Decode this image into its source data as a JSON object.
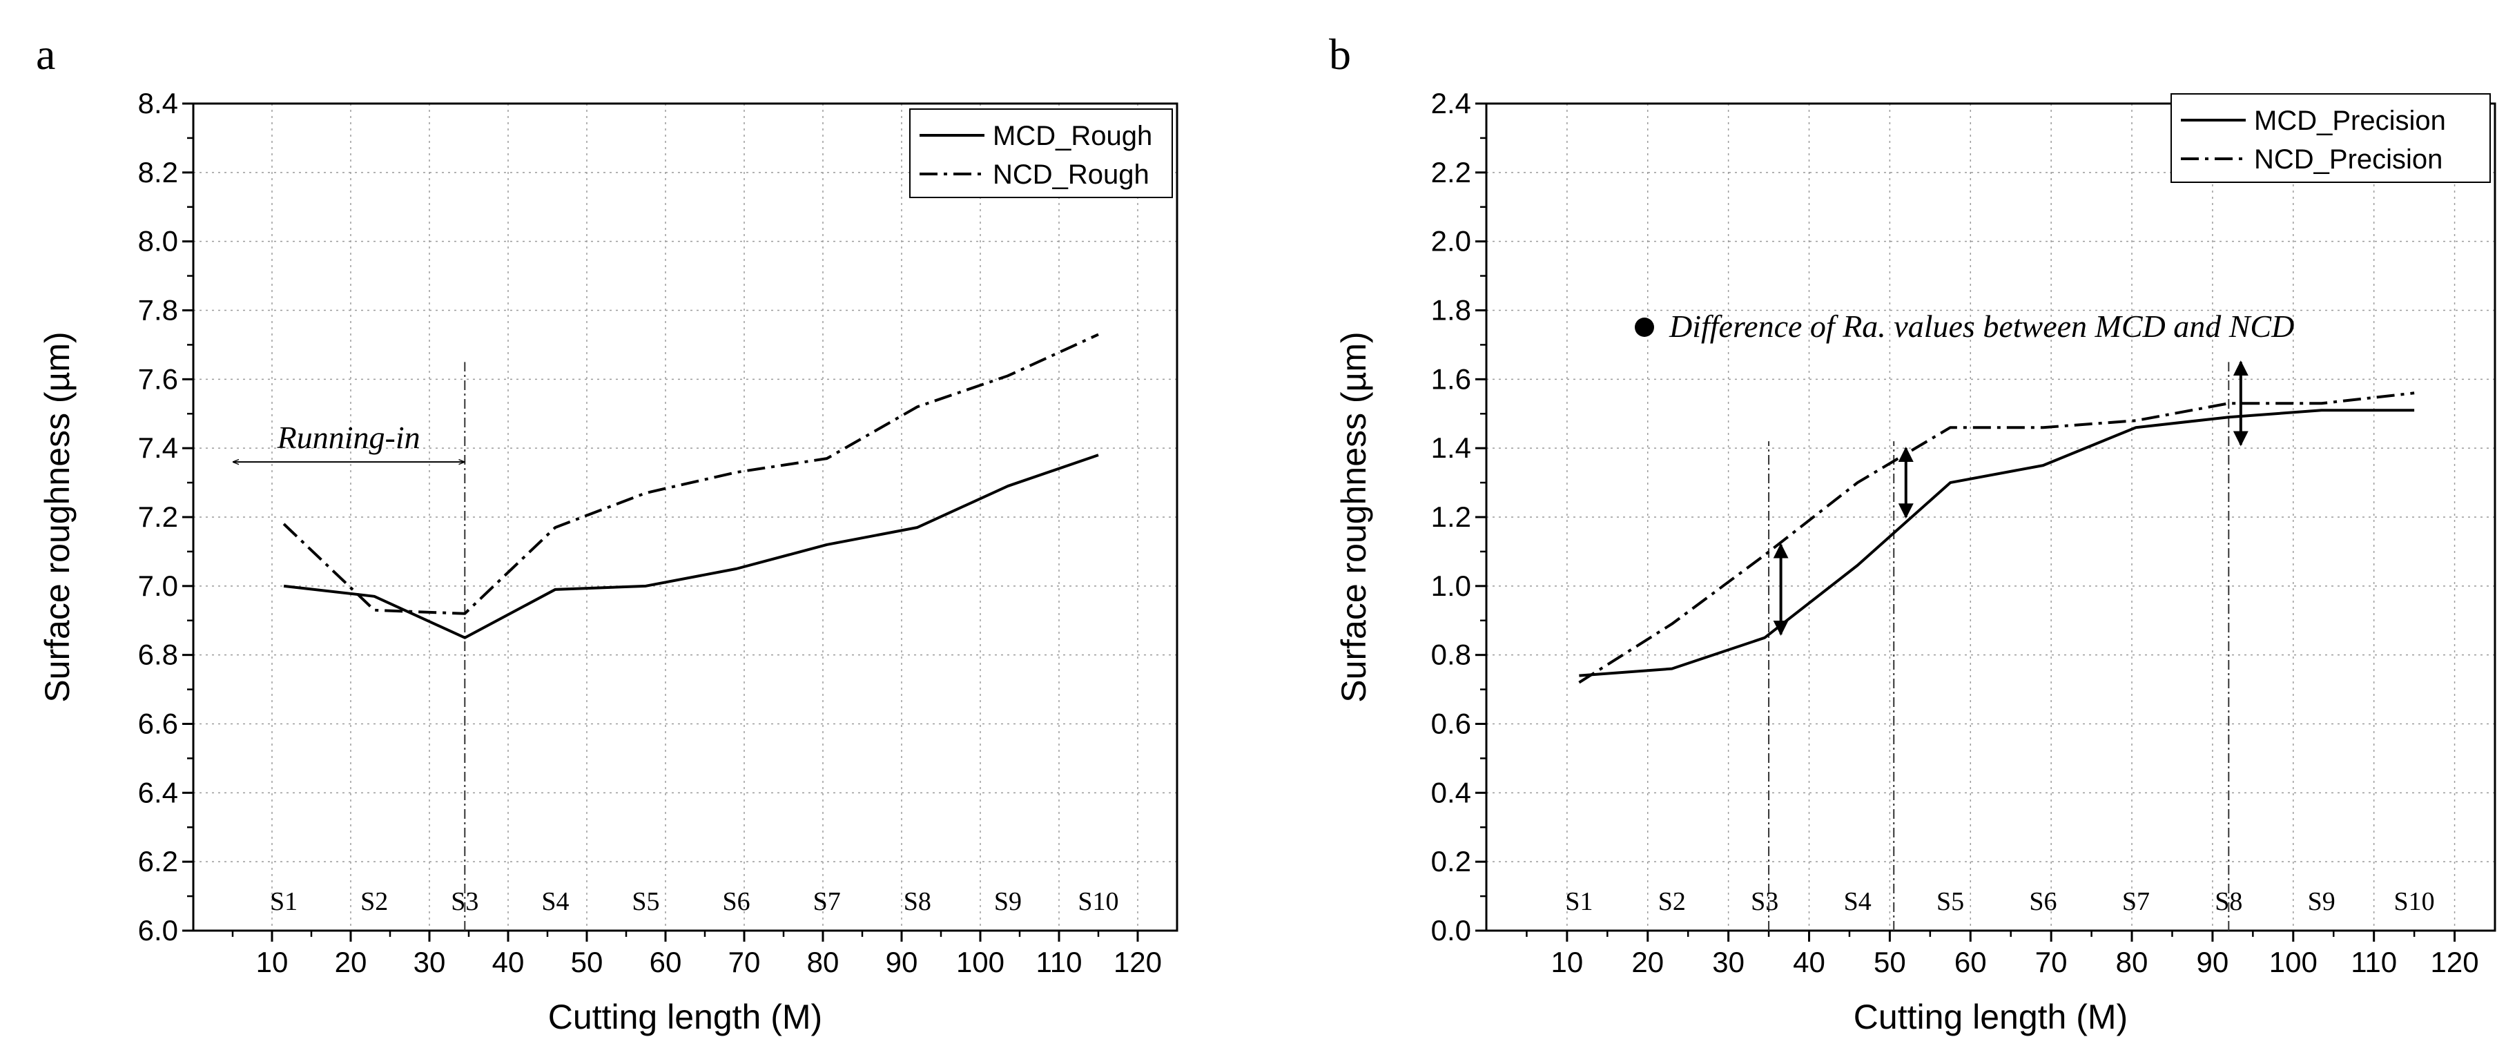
{
  "chart_data": [
    {
      "type": "line",
      "panel_label": "a",
      "xlabel": "Cutting length (M)",
      "ylabel": "Surface roughness (µm)",
      "xlim": [
        0,
        125
      ],
      "ylim": [
        6.0,
        8.4
      ],
      "xticks": [
        10,
        20,
        30,
        40,
        50,
        60,
        70,
        80,
        90,
        100,
        110,
        120
      ],
      "yticks": [
        6.0,
        6.2,
        6.4,
        6.6,
        6.8,
        7.0,
        7.2,
        7.4,
        7.6,
        7.8,
        8.0,
        8.2,
        8.4
      ],
      "ytick_labels": [
        "6.0",
        "6.2",
        "6.4",
        "6.6",
        "6.8",
        "7.0",
        "7.2",
        "7.4",
        "7.6",
        "7.8",
        "8.0",
        "8.2",
        "8.4"
      ],
      "grid": true,
      "legend_position": "top-right",
      "series": [
        {
          "name": "MCD_Rough",
          "style": "solid",
          "x": [
            11.5,
            23,
            34.5,
            46,
            57.5,
            69,
            80.5,
            92,
            103.5,
            115
          ],
          "y": [
            7.0,
            6.97,
            6.85,
            6.99,
            7.0,
            7.05,
            7.12,
            7.17,
            7.29,
            7.38
          ]
        },
        {
          "name": "NCD_Rough",
          "style": "dashdot",
          "x": [
            11.5,
            23,
            34.5,
            46,
            57.5,
            69,
            80.5,
            92,
            103.5,
            115
          ],
          "y": [
            7.18,
            6.93,
            6.92,
            7.17,
            7.27,
            7.33,
            7.37,
            7.52,
            7.61,
            7.73
          ]
        }
      ],
      "sample_labels": [
        {
          "text": "S1",
          "x": 11.5
        },
        {
          "text": "S2",
          "x": 23
        },
        {
          "text": "S3",
          "x": 34.5
        },
        {
          "text": "S4",
          "x": 46
        },
        {
          "text": "S5",
          "x": 57.5
        },
        {
          "text": "S6",
          "x": 69
        },
        {
          "text": "S7",
          "x": 80.5
        },
        {
          "text": "S8",
          "x": 92
        },
        {
          "text": "S9",
          "x": 103.5
        },
        {
          "text": "S10",
          "x": 115
        }
      ],
      "vlines": [
        {
          "x": 34.5,
          "y_from": 6.0,
          "y_to": 7.65
        }
      ],
      "running_in": {
        "text": "Running-in",
        "x_from": 5,
        "x_to": 34.5,
        "y": 7.36
      }
    },
    {
      "type": "line",
      "panel_label": "b",
      "xlabel": "Cutting length (M)",
      "ylabel": "Surface roughness (µm)",
      "xlim": [
        0,
        125
      ],
      "ylim": [
        0.0,
        2.4
      ],
      "xticks": [
        10,
        20,
        30,
        40,
        50,
        60,
        70,
        80,
        90,
        100,
        110,
        120
      ],
      "yticks": [
        0.0,
        0.2,
        0.4,
        0.6,
        0.8,
        1.0,
        1.2,
        1.4,
        1.6,
        1.8,
        2.0,
        2.2,
        2.4
      ],
      "ytick_labels": [
        "0.0",
        "0.2",
        "0.4",
        "0.6",
        "0.8",
        "1.0",
        "1.2",
        "1.4",
        "1.6",
        "1.8",
        "2.0",
        "2.2",
        "2.4"
      ],
      "grid": true,
      "legend_position": "top-right",
      "series": [
        {
          "name": "MCD_Precision",
          "style": "solid",
          "x": [
            11.5,
            23,
            34.5,
            46,
            57.5,
            69,
            80.5,
            92,
            103.5,
            115
          ],
          "y": [
            0.74,
            0.76,
            0.85,
            1.06,
            1.3,
            1.35,
            1.46,
            1.49,
            1.51,
            1.51
          ]
        },
        {
          "name": "NCD_Precision",
          "style": "dashdot",
          "x": [
            11.5,
            23,
            34.5,
            46,
            57.5,
            69,
            80.5,
            92,
            103.5,
            115
          ],
          "y": [
            0.72,
            0.89,
            1.09,
            1.3,
            1.46,
            1.46,
            1.48,
            1.53,
            1.53,
            1.56
          ]
        }
      ],
      "sample_labels": [
        {
          "text": "S1",
          "x": 11.5
        },
        {
          "text": "S2",
          "x": 23
        },
        {
          "text": "S3",
          "x": 34.5
        },
        {
          "text": "S4",
          "x": 46
        },
        {
          "text": "S5",
          "x": 57.5
        },
        {
          "text": "S6",
          "x": 69
        },
        {
          "text": "S7",
          "x": 80.5
        },
        {
          "text": "S8",
          "x": 92
        },
        {
          "text": "S9",
          "x": 103.5
        },
        {
          "text": "S10",
          "x": 115
        }
      ],
      "vlines": [
        {
          "x": 35,
          "y_from": 0.0,
          "y_to": 1.42
        },
        {
          "x": 50.5,
          "y_from": 0.0,
          "y_to": 1.42
        },
        {
          "x": 92,
          "y_from": 0.0,
          "y_to": 1.65
        }
      ],
      "diff_arrows": [
        {
          "x": 36.5,
          "y_low": 0.86,
          "y_high": 1.12
        },
        {
          "x": 52,
          "y_low": 1.2,
          "y_high": 1.4
        },
        {
          "x": 93.5,
          "y_low": 1.41,
          "y_high": 1.65
        }
      ],
      "annotation": "Difference of Ra. values between MCD and NCD"
    }
  ]
}
